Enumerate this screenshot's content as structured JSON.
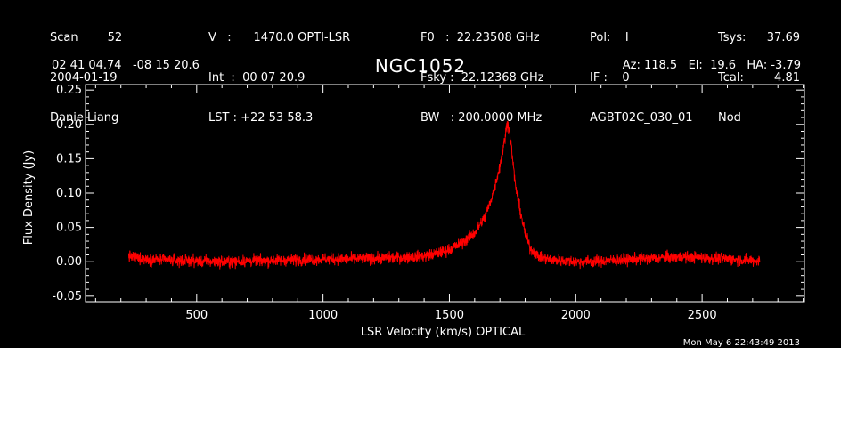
{
  "header": {
    "col1": [
      "Scan        52",
      "2004-01-19",
      "Danie Liang"
    ],
    "col2": [
      "V   :      1470.0 OPTI-LSR",
      "Int  :  00 07 20.9",
      "LST : +22 53 58.3"
    ],
    "col3": [
      "F0   :  22.23508 GHz",
      "Fsky :  22.12368 GHz",
      "BW   : 200.0000 MHz"
    ],
    "col4": [
      "Pol:    I",
      "IF :    0",
      "AGBT02C_030_01"
    ],
    "col5": [
      "Tsys:",
      "Tcal:",
      "Nod"
    ],
    "col6": [
      "37.69",
      "4.81",
      ""
    ],
    "coords": "02 41 04.74   -08 15 20.6",
    "telescope": "Az: 118.5   El:  19.6   HA: -3.79",
    "source": "NGC1052",
    "timestamp": "Mon May  6 22:43:49 2013"
  },
  "chart_data": {
    "type": "line",
    "title": "NGC1052",
    "xlabel": "LSR Velocity (km/s) OPTICAL",
    "ylabel": "Flux Density (Jy)",
    "xlim": [
      60,
      2905
    ],
    "ylim": [
      -0.058,
      0.258
    ],
    "xticks": [
      500,
      1000,
      1500,
      2000,
      2500
    ],
    "yticks": [
      -0.05,
      0.0,
      0.05,
      0.1,
      0.15,
      0.2,
      0.25
    ],
    "ytick_labels": [
      "-0.05",
      "0.00",
      "0.05",
      "0.10",
      "0.15",
      "0.20",
      "0.25"
    ],
    "series": [
      {
        "color": "#ff0000",
        "x": [
          230,
          300,
          400,
          500,
          600,
          700,
          800,
          900,
          1000,
          1100,
          1200,
          1300,
          1400,
          1450,
          1500,
          1550,
          1600,
          1640,
          1660,
          1680,
          1700,
          1710,
          1720,
          1730,
          1740,
          1750,
          1760,
          1780,
          1800,
          1820,
          1850,
          1900,
          2000,
          2100,
          2200,
          2300,
          2400,
          2500,
          2600,
          2700,
          2730
        ],
        "y": [
          0.008,
          0.004,
          0.002,
          0.001,
          0.0,
          0.001,
          0.002,
          0.003,
          0.004,
          0.004,
          0.005,
          0.006,
          0.008,
          0.012,
          0.018,
          0.027,
          0.042,
          0.065,
          0.085,
          0.11,
          0.14,
          0.16,
          0.18,
          0.205,
          0.185,
          0.15,
          0.115,
          0.075,
          0.04,
          0.02,
          0.008,
          0.003,
          0.0,
          0.001,
          0.003,
          0.005,
          0.007,
          0.006,
          0.004,
          0.002,
          0.001
        ]
      }
    ]
  }
}
